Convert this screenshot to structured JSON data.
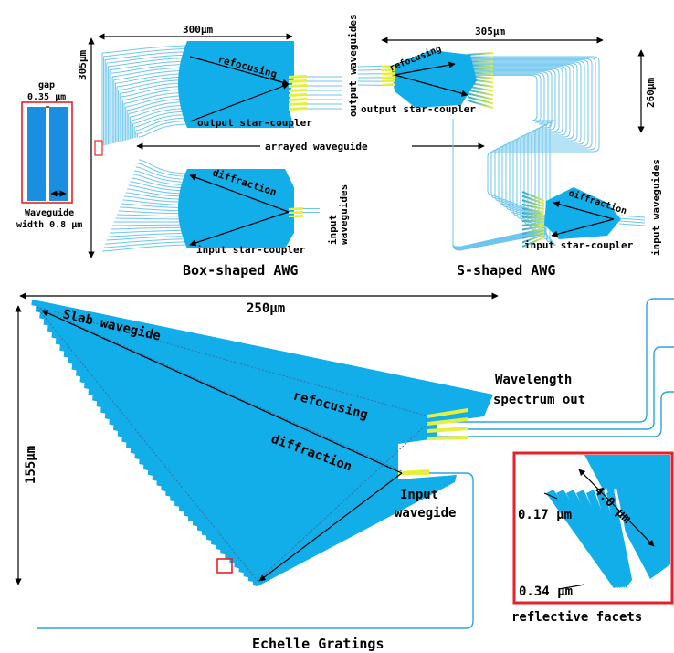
{
  "box_awg": {
    "title": "Box-shaped AWG",
    "width_dim": "300μm",
    "height_dim": "305μm",
    "refocusing": "refocusing",
    "output_star_coupler": "output star-coupler",
    "diffraction": "diffraction",
    "input_star_coupler": "input star-coupler",
    "output_waveguides": "output waveguides",
    "input_waveguides_1": "input",
    "input_waveguides_2": "waveguides",
    "arrayed_waveguide": "arrayed waveguide"
  },
  "gap_inset": {
    "gap_label": "gap",
    "gap_value": "0.35 μm",
    "width_label_1": "Waveguide",
    "width_label_2": "width 0.8 μm"
  },
  "s_awg": {
    "title": "S-shaped AWG",
    "width_dim": "305μm",
    "height_dim": "260μm",
    "refocusing": "refocusing",
    "output_star_coupler": "output star-coupler",
    "diffraction": "diffraction",
    "input_star_coupler": "input star-coupler",
    "input_waveguides": "input waveguides"
  },
  "echelle": {
    "title": "Echelle Gratings",
    "width_dim": "250μm",
    "height_dim": "155μm",
    "slab": "Slab wavegide",
    "refocusing": "refocusing",
    "diffraction": "diffraction",
    "wavelength_1": "Wavelength",
    "wavelength_2": "spectrum out",
    "input_1": "Input",
    "input_2": "wavegide"
  },
  "facet_inset": {
    "length": "4.0 μm",
    "gap1": "0.17 μm",
    "gap2": "0.34 μm",
    "caption": "reflective facets"
  },
  "colors": {
    "slab": "#11aeea",
    "waveguide": "#6ec6ee",
    "taper": "#e6f03c",
    "frame": "#e8202a"
  }
}
